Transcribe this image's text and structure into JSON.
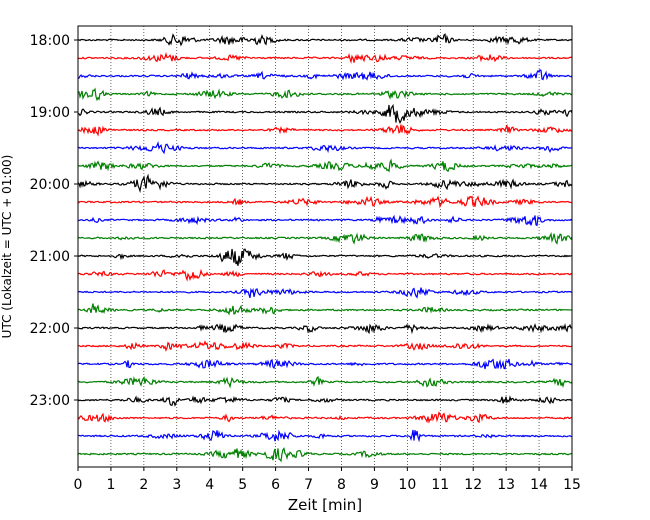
{
  "chart_data": {
    "type": "line",
    "title": "",
    "xlabel": "Zeit  [min]",
    "ylabel": "UTC (Lokalzeit = UTC + 01:00)",
    "xlim": [
      0,
      15
    ],
    "x_ticks": [
      "0",
      "1",
      "2",
      "3",
      "4",
      "5",
      "6",
      "7",
      "8",
      "9",
      "10",
      "11",
      "12",
      "13",
      "14",
      "15"
    ],
    "y_ticks": [
      {
        "label": "18:00",
        "trace_index": 0
      },
      {
        "label": "19:00",
        "trace_index": 4
      },
      {
        "label": "20:00",
        "trace_index": 8
      },
      {
        "label": "21:00",
        "trace_index": 12
      },
      {
        "label": "22:00",
        "trace_index": 16
      },
      {
        "label": "23:00",
        "trace_index": 20
      }
    ],
    "grid": "vertical dotted at each minute",
    "trace_interval_min": 15,
    "trace_count": 24,
    "trace_colors": [
      "#000000",
      "#ff0000",
      "#0000ff",
      "#008000"
    ],
    "traces": [
      {
        "start": "18:00"
      },
      {
        "start": "18:15"
      },
      {
        "start": "18:30"
      },
      {
        "start": "18:45"
      },
      {
        "start": "19:00"
      },
      {
        "start": "19:15"
      },
      {
        "start": "19:30"
      },
      {
        "start": "19:45"
      },
      {
        "start": "20:00"
      },
      {
        "start": "20:15"
      },
      {
        "start": "20:30"
      },
      {
        "start": "20:45"
      },
      {
        "start": "21:00"
      },
      {
        "start": "21:15"
      },
      {
        "start": "21:30"
      },
      {
        "start": "21:45"
      },
      {
        "start": "22:00"
      },
      {
        "start": "22:15"
      },
      {
        "start": "22:30"
      },
      {
        "start": "22:45"
      },
      {
        "start": "23:00"
      },
      {
        "start": "23:15"
      },
      {
        "start": "23:30"
      },
      {
        "start": "23:45"
      }
    ]
  }
}
